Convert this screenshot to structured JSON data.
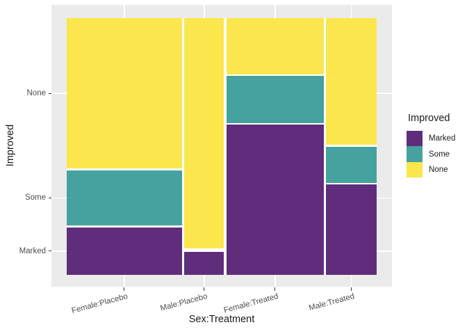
{
  "chart_data": {
    "type": "mosaic",
    "title": "",
    "xlabel": "Sex:Treatment",
    "ylabel": "Improved",
    "legend_title": "Improved",
    "categories": [
      "Female:Placebo",
      "Male:Placebo",
      "Female:Treated",
      "Male:Treated"
    ],
    "column_totals": [
      32,
      11,
      27,
      14
    ],
    "stack_order_top_to_bottom": [
      "None",
      "Some",
      "Marked"
    ],
    "series": [
      {
        "name": "Marked",
        "color": "#5F2D7B",
        "values": [
          6,
          1,
          16,
          5
        ]
      },
      {
        "name": "Some",
        "color": "#46A29E",
        "values": [
          7,
          0,
          5,
          2
        ]
      },
      {
        "name": "None",
        "color": "#FBE64E",
        "values": [
          19,
          10,
          6,
          7
        ]
      }
    ],
    "y_ticks": [
      "None",
      "Some",
      "Marked"
    ],
    "x_ticks": [
      "Female:Placebo",
      "Male:Placebo",
      "Female:Treated",
      "Male:Treated"
    ],
    "panel_background": "#EBEBEB",
    "gridline_color": "#FFFFFF",
    "tick_label_color": "#4D4D4D",
    "axis_title_color": "#1A1A1A"
  }
}
